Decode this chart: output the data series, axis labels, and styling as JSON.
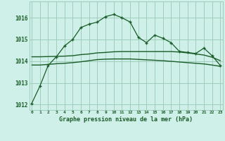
{
  "x": [
    0,
    1,
    2,
    3,
    4,
    5,
    6,
    7,
    8,
    9,
    10,
    11,
    12,
    13,
    14,
    15,
    16,
    17,
    18,
    19,
    20,
    21,
    22,
    23
  ],
  "main_line": [
    1012.05,
    1012.85,
    1013.8,
    1014.2,
    1014.7,
    1015.0,
    1015.55,
    1015.7,
    1015.8,
    1016.05,
    1016.15,
    1016.0,
    1015.8,
    1015.1,
    1014.85,
    1015.2,
    1015.05,
    1014.85,
    1014.45,
    1014.4,
    1014.35,
    1014.6,
    1014.25,
    1013.8
  ],
  "smooth_line1": [
    1014.2,
    1014.2,
    1014.21,
    1014.22,
    1014.23,
    1014.25,
    1014.3,
    1014.33,
    1014.38,
    1014.4,
    1014.43,
    1014.44,
    1014.44,
    1014.44,
    1014.44,
    1014.44,
    1014.44,
    1014.44,
    1014.42,
    1014.38,
    1014.33,
    1014.28,
    1014.18,
    1014.02
  ],
  "smooth_line2": [
    1013.82,
    1013.82,
    1013.85,
    1013.88,
    1013.9,
    1013.93,
    1013.97,
    1014.02,
    1014.07,
    1014.09,
    1014.1,
    1014.1,
    1014.1,
    1014.08,
    1014.06,
    1014.04,
    1014.02,
    1013.99,
    1013.96,
    1013.93,
    1013.9,
    1013.87,
    1013.82,
    1013.76
  ],
  "bg_color": "#cef0e8",
  "grid_color": "#a0ccbb",
  "line_color": "#1a5c28",
  "xlabel": "Graphe pression niveau de la mer (hPa)",
  "ylim_min": 1011.75,
  "ylim_max": 1016.75,
  "yticks": [
    1012,
    1013,
    1014,
    1015,
    1016
  ],
  "xticks": [
    0,
    1,
    2,
    3,
    4,
    5,
    6,
    7,
    8,
    9,
    10,
    11,
    12,
    13,
    14,
    15,
    16,
    17,
    18,
    19,
    20,
    21,
    22,
    23
  ]
}
